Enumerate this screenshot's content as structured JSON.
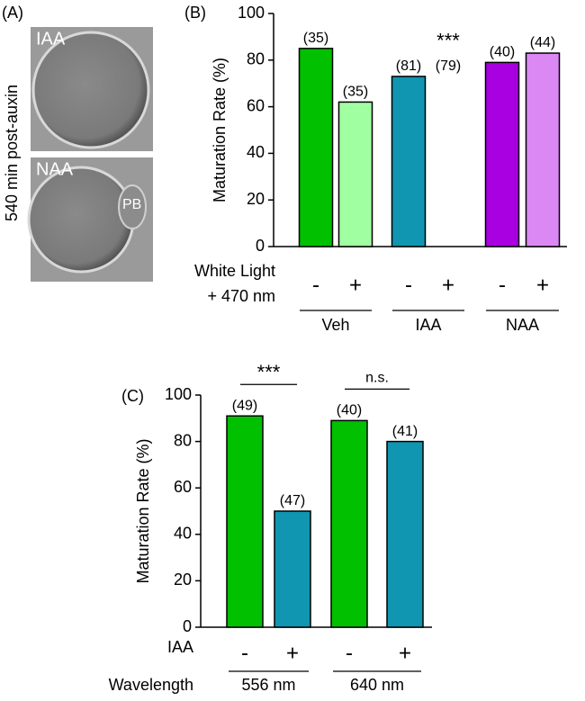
{
  "panel_a": {
    "label": "(A)",
    "side_label": "540 min post-auxin",
    "top_label": "IAA",
    "bottom_label": "NAA",
    "pb_label": "PB"
  },
  "chart_data": [
    {
      "type": "bar",
      "panel_label": "(B)",
      "ylabel": "Maturation Rate (%)",
      "row_label": [
        "White Light",
        "+ 470 nm"
      ],
      "categories": [
        "-",
        "+",
        "-",
        "+",
        "-",
        "+"
      ],
      "values": [
        85,
        62,
        73,
        0,
        79,
        83
      ],
      "count_labels": [
        "(35)",
        "(35)",
        "(81)",
        "(79)",
        "(40)",
        "(44)"
      ],
      "colors": [
        "#00c000",
        "#a0ffa0",
        "#1096b0",
        "#1096b0",
        "#a800e0",
        "#dc88f4"
      ],
      "groups": [
        {
          "name": "Veh"
        },
        {
          "name": "IAA",
          "note": "***"
        },
        {
          "name": "NAA"
        }
      ],
      "ylim": [
        0,
        100
      ],
      "yticks": [
        0,
        20,
        40,
        60,
        80,
        100
      ]
    },
    {
      "type": "bar",
      "panel_label": "(C)",
      "ylabel": "Maturation Rate (%)",
      "row_label": [
        "IAA"
      ],
      "group_label": "Wavelength",
      "categories": [
        "-",
        "+",
        "-",
        "+"
      ],
      "values": [
        91,
        50,
        89,
        80
      ],
      "count_labels": [
        "(49)",
        "(47)",
        "(40)",
        "(41)"
      ],
      "colors": [
        "#00c000",
        "#1096b0",
        "#00c000",
        "#1096b0"
      ],
      "groups": [
        {
          "name": "556 nm",
          "note": "***"
        },
        {
          "name": "640 nm",
          "note": "n.s."
        }
      ],
      "ylim": [
        0,
        100
      ],
      "yticks": [
        0,
        20,
        40,
        60,
        80,
        100
      ]
    }
  ]
}
